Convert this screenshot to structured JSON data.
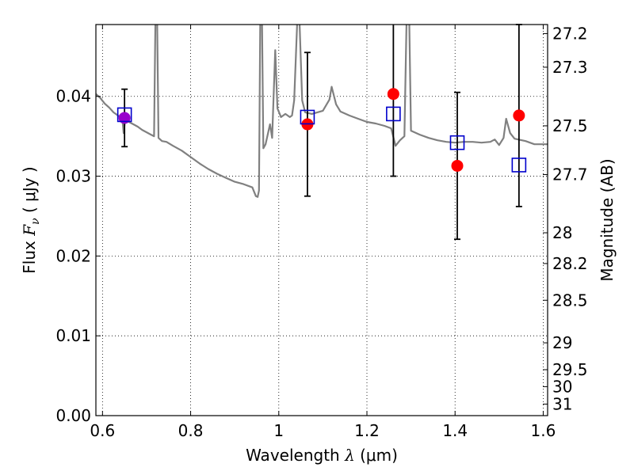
{
  "chart_data": {
    "type": "scatter",
    "xlabel": {
      "prefix": "Wavelength  ",
      "symbol": "λ",
      "unit": " (μm)"
    },
    "ylabel": {
      "prefix": "Flux  ",
      "symbol": "F",
      "subscript": "ν",
      "unit": "  ( μJy )"
    },
    "y2label": "Magnitude (AB)",
    "xlim": [
      0.585,
      1.61
    ],
    "ylim": [
      0.0,
      0.049
    ],
    "grid": true,
    "x_ticks": [
      {
        "value": 0.6,
        "label": "0.6"
      },
      {
        "value": 0.8,
        "label": "0.8"
      },
      {
        "value": 1.0,
        "label": "1"
      },
      {
        "value": 1.2,
        "label": "1.2"
      },
      {
        "value": 1.4,
        "label": "1.4"
      },
      {
        "value": 1.6,
        "label": "1.6"
      }
    ],
    "y_ticks": [
      {
        "value": 0.0,
        "label": "0.00"
      },
      {
        "value": 0.01,
        "label": "0.01"
      },
      {
        "value": 0.02,
        "label": "0.02"
      },
      {
        "value": 0.03,
        "label": "0.03"
      },
      {
        "value": 0.04,
        "label": "0.04"
      }
    ],
    "magnitude_ticks": [
      27.2,
      27.3,
      27.5,
      27.7,
      28,
      28.2,
      28.5,
      29,
      29.5,
      30,
      31
    ],
    "observed": {
      "color": "#000000",
      "points": [
        {
          "x": 0.65,
          "y": 0.0373,
          "err": 0.0036
        },
        {
          "x": 1.065,
          "y": 0.0365,
          "err": 0.009
        },
        {
          "x": 1.26,
          "y": 0.0403,
          "err": 0.0103
        },
        {
          "x": 1.405,
          "y": 0.0313,
          "err": 0.0092
        },
        {
          "x": 1.545,
          "y": 0.0376,
          "err": 0.0114
        }
      ],
      "fill_colors": [
        "#9900cc",
        "#ff0000",
        "#ff0000",
        "#ff0000",
        "#ff0000"
      ]
    },
    "model_photometry": {
      "color": "#0000cc",
      "points": [
        {
          "x": 0.65,
          "y": 0.0377
        },
        {
          "x": 1.065,
          "y": 0.0374
        },
        {
          "x": 1.26,
          "y": 0.0378
        },
        {
          "x": 1.405,
          "y": 0.0342
        },
        {
          "x": 1.545,
          "y": 0.0314
        }
      ]
    },
    "spectrum": {
      "color": "#808080",
      "points": [
        [
          0.585,
          0.0403
        ],
        [
          0.595,
          0.0398
        ],
        [
          0.605,
          0.0391
        ],
        [
          0.615,
          0.0386
        ],
        [
          0.625,
          0.038
        ],
        [
          0.635,
          0.0376
        ],
        [
          0.645,
          0.0372
        ],
        [
          0.648,
          0.0354
        ],
        [
          0.652,
          0.0374
        ],
        [
          0.66,
          0.0368
        ],
        [
          0.67,
          0.0365
        ],
        [
          0.68,
          0.0362
        ],
        [
          0.69,
          0.0358
        ],
        [
          0.7,
          0.0355
        ],
        [
          0.71,
          0.0352
        ],
        [
          0.717,
          0.035
        ],
        [
          0.72,
          0.0495
        ],
        [
          0.724,
          0.0495
        ],
        [
          0.727,
          0.0348
        ],
        [
          0.735,
          0.0344
        ],
        [
          0.745,
          0.0343
        ],
        [
          0.76,
          0.0338
        ],
        [
          0.78,
          0.0332
        ],
        [
          0.8,
          0.0324
        ],
        [
          0.82,
          0.0316
        ],
        [
          0.84,
          0.0309
        ],
        [
          0.86,
          0.0303
        ],
        [
          0.88,
          0.0298
        ],
        [
          0.9,
          0.0293
        ],
        [
          0.92,
          0.029
        ],
        [
          0.94,
          0.0286
        ],
        [
          0.948,
          0.0275
        ],
        [
          0.952,
          0.0274
        ],
        [
          0.955,
          0.0282
        ],
        [
          0.958,
          0.0495
        ],
        [
          0.962,
          0.0495
        ],
        [
          0.965,
          0.0335
        ],
        [
          0.97,
          0.034
        ],
        [
          0.98,
          0.0365
        ],
        [
          0.985,
          0.0348
        ],
        [
          0.992,
          0.0458
        ],
        [
          0.997,
          0.0385
        ],
        [
          1.005,
          0.0374
        ],
        [
          1.015,
          0.0378
        ],
        [
          1.025,
          0.0374
        ],
        [
          1.03,
          0.0376
        ],
        [
          1.035,
          0.0395
        ],
        [
          1.042,
          0.0495
        ],
        [
          1.047,
          0.0495
        ],
        [
          1.053,
          0.0395
        ],
        [
          1.06,
          0.038
        ],
        [
          1.075,
          0.0378
        ],
        [
          1.1,
          0.0382
        ],
        [
          1.115,
          0.0396
        ],
        [
          1.12,
          0.0412
        ],
        [
          1.13,
          0.039
        ],
        [
          1.14,
          0.0381
        ],
        [
          1.16,
          0.0376
        ],
        [
          1.18,
          0.0372
        ],
        [
          1.2,
          0.0368
        ],
        [
          1.22,
          0.0366
        ],
        [
          1.24,
          0.0363
        ],
        [
          1.255,
          0.036
        ],
        [
          1.265,
          0.0338
        ],
        [
          1.275,
          0.0345
        ],
        [
          1.285,
          0.035
        ],
        [
          1.29,
          0.0495
        ],
        [
          1.296,
          0.0495
        ],
        [
          1.3,
          0.0357
        ],
        [
          1.32,
          0.0352
        ],
        [
          1.34,
          0.0348
        ],
        [
          1.36,
          0.0345
        ],
        [
          1.38,
          0.0343
        ],
        [
          1.4,
          0.0342
        ],
        [
          1.42,
          0.0343
        ],
        [
          1.44,
          0.0343
        ],
        [
          1.46,
          0.0342
        ],
        [
          1.48,
          0.0343
        ],
        [
          1.49,
          0.0346
        ],
        [
          1.5,
          0.0339
        ],
        [
          1.51,
          0.0348
        ],
        [
          1.516,
          0.0372
        ],
        [
          1.525,
          0.0354
        ],
        [
          1.535,
          0.0347
        ],
        [
          1.56,
          0.0344
        ],
        [
          1.58,
          0.034
        ],
        [
          1.61,
          0.034
        ]
      ]
    }
  }
}
